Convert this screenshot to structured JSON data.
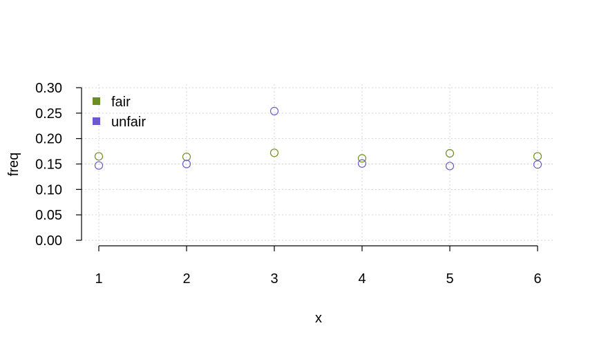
{
  "chart_data": {
    "type": "scatter",
    "xlabel": "x",
    "ylabel": "freq",
    "xlim": [
      1,
      6
    ],
    "ylim": [
      0,
      0.3
    ],
    "xticks": [
      "1",
      "2",
      "3",
      "4",
      "5",
      "6"
    ],
    "yticks": [
      "0.00",
      "0.05",
      "0.10",
      "0.15",
      "0.20",
      "0.25",
      "0.30"
    ],
    "grid": true,
    "legend_position": "top-left",
    "marker": "open-circle",
    "series": [
      {
        "name": "fair",
        "color": "#6b8e23",
        "x": [
          1,
          2,
          3,
          4,
          5,
          6
        ],
        "y": [
          0.165,
          0.164,
          0.172,
          0.161,
          0.171,
          0.165
        ]
      },
      {
        "name": "unfair",
        "color": "#6a5acd",
        "x": [
          1,
          2,
          3,
          4,
          5,
          6
        ],
        "y": [
          0.147,
          0.15,
          0.254,
          0.151,
          0.146,
          0.149
        ]
      }
    ]
  }
}
